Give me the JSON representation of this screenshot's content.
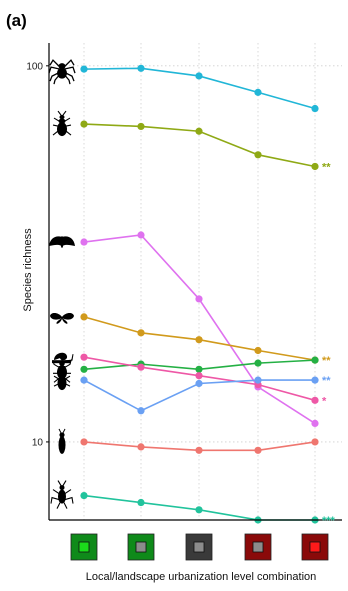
{
  "chart_data": {
    "type": "line",
    "panel_label": "(a)",
    "xlabel": "Local/landscape urbanization level combination",
    "ylabel": "Species richness",
    "y_scale": "log",
    "ylim": [
      6.2,
      115
    ],
    "y_ticks": [
      10,
      100
    ],
    "y_tick_labels": [
      "10",
      "100"
    ],
    "grid": "vertical dotted",
    "x_categories": [
      {
        "outer": "#0f8a1a",
        "inner": "#1bdc1b"
      },
      {
        "outer": "#0f8a1a",
        "inner": "#8c8c8c"
      },
      {
        "outer": "#3a3a3a",
        "inner": "#8c8c8c"
      },
      {
        "outer": "#8a0a0a",
        "inner": "#8c8c8c"
      },
      {
        "outer": "#8a0a0a",
        "inner": "#ff1a1a"
      }
    ],
    "series": [
      {
        "icon": "spider-icon",
        "color": "#21b6d7",
        "values": [
          98,
          98.5,
          94,
          85,
          77
        ],
        "sig": ""
      },
      {
        "icon": "ground-beetle-icon",
        "color": "#8fa915",
        "values": [
          70,
          69,
          67,
          58,
          54
        ],
        "sig": "**"
      },
      {
        "icon": "moth-icon",
        "color": "#df72ef",
        "values": [
          34,
          35.5,
          24,
          14,
          11.2
        ],
        "sig": ""
      },
      {
        "icon": "butterfly-icon",
        "color": "#d19a1c",
        "values": [
          21.5,
          19.5,
          18.7,
          17.5,
          16.5
        ],
        "sig": "**"
      },
      {
        "icon": "weevil-icon",
        "color": "#24b044",
        "values": [
          15.6,
          16.1,
          15.6,
          16.2,
          16.5
        ],
        "sig": ""
      },
      {
        "icon": "snail-icon",
        "color": "#ee58a6",
        "values": [
          16.8,
          15.8,
          15,
          14.2,
          12.9
        ],
        "sig": "*"
      },
      {
        "icon": "beetle-icon",
        "color": "#6aa0f3",
        "values": [
          14.6,
          12.1,
          14.3,
          14.6,
          14.6
        ],
        "sig": "**"
      },
      {
        "icon": "bee-icon",
        "color": "#ef766f",
        "values": [
          10,
          9.7,
          9.5,
          9.5,
          10
        ],
        "sig": ""
      },
      {
        "icon": "cricket-icon",
        "color": "#21c39c",
        "values": [
          7.2,
          6.9,
          6.6,
          6.2,
          6.2
        ],
        "sig": "***"
      }
    ]
  }
}
